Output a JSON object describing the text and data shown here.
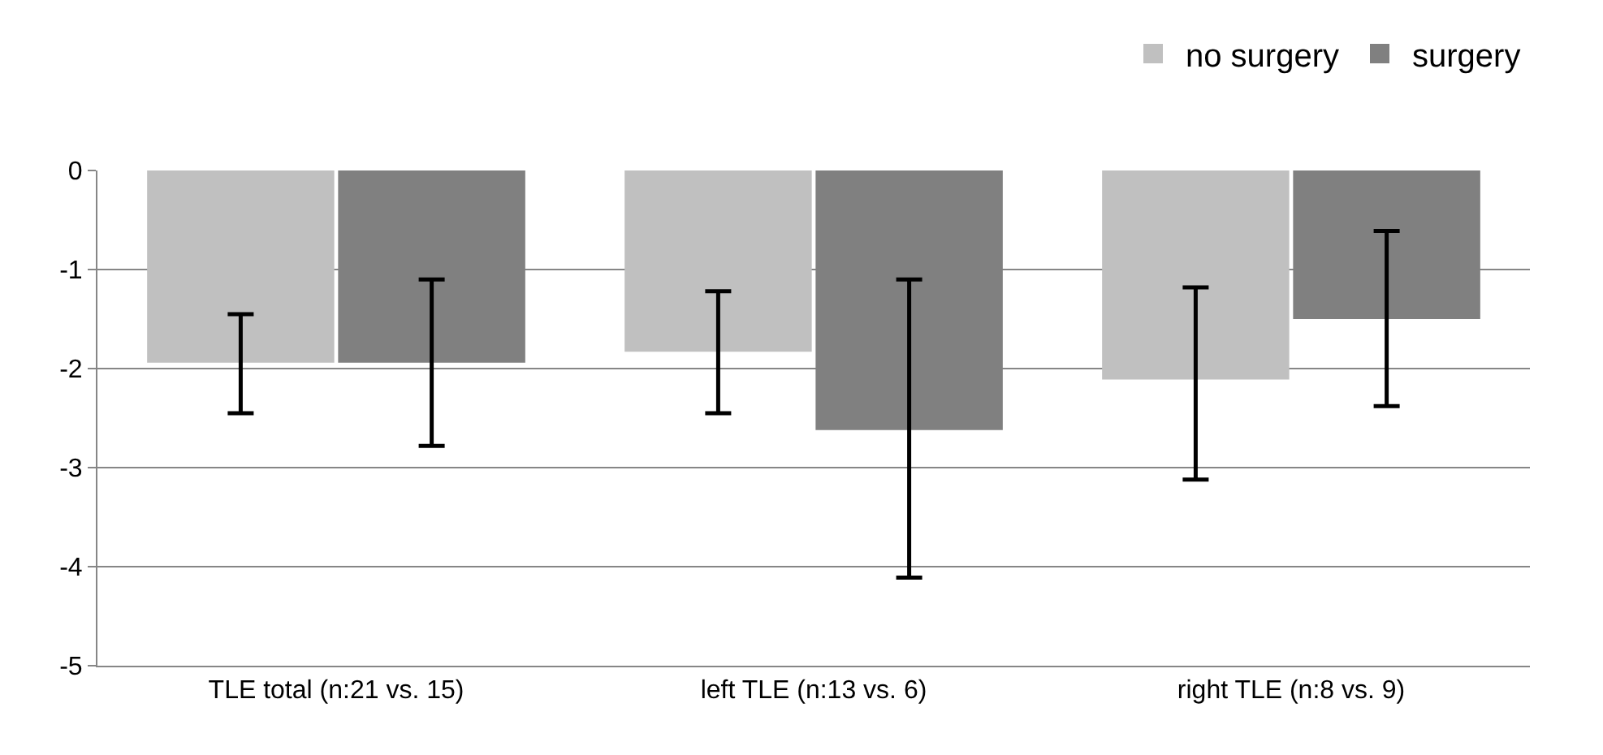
{
  "chart_data": {
    "type": "bar",
    "categories": [
      "TLE total (n:21 vs. 15)",
      "left TLE (n:13 vs. 6)",
      "right TLE (n:8 vs. 9)"
    ],
    "series": [
      {
        "name": "no surgery",
        "color": "#c0c0c0",
        "values": [
          -1.94,
          -1.83,
          -2.11
        ],
        "errors": [
          [
            -2.45,
            -1.45
          ],
          [
            -2.45,
            -1.22
          ],
          [
            -3.12,
            -1.18
          ]
        ]
      },
      {
        "name": "surgery",
        "color": "#808080",
        "values": [
          -1.94,
          -2.62,
          -1.5
        ],
        "errors": [
          [
            -2.78,
            -1.1
          ],
          [
            -4.11,
            -1.1
          ],
          [
            -2.38,
            -0.61
          ]
        ]
      }
    ],
    "ylim": [
      -5,
      0
    ],
    "yticks": [
      0,
      -1,
      -2,
      -3,
      -4,
      -5
    ],
    "grid": "y",
    "legend": "top right"
  }
}
